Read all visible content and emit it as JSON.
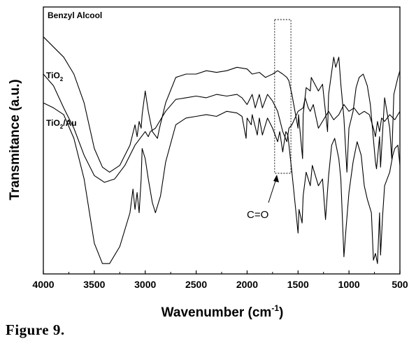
{
  "caption": "Figure 9.",
  "chart_data": {
    "type": "line",
    "xlabel_main": "Wavenumber (cm",
    "xlabel_sup": "-1",
    "xlabel_end": ")",
    "ylabel": "Transmitance (a.u.)",
    "xlim": [
      4000,
      500
    ],
    "x_reversed": true,
    "y_ticks_shown": false,
    "grid": false,
    "x_ticks": [
      "4000",
      "3500",
      "3000",
      "2500",
      "2000",
      "1500",
      "1000",
      "500"
    ],
    "x_tick_values": [
      4000,
      3500,
      3000,
      2500,
      2000,
      1500,
      1000,
      500
    ],
    "annotation": {
      "text": "C=O",
      "box_x_range": [
        1730,
        1570
      ]
    },
    "series": [
      {
        "name": "Benzyl Alcool",
        "name_parts": {
          "main": "Benzyl Alcool",
          "sub": "",
          "rest": ""
        },
        "points": [
          [
            4000,
            16
          ],
          [
            3900,
            22
          ],
          [
            3800,
            28
          ],
          [
            3700,
            38
          ],
          [
            3600,
            55
          ],
          [
            3500,
            82
          ],
          [
            3420,
            93
          ],
          [
            3350,
            96
          ],
          [
            3250,
            92
          ],
          [
            3150,
            80
          ],
          [
            3100,
            68
          ],
          [
            3080,
            75
          ],
          [
            3060,
            66
          ],
          [
            3040,
            70
          ],
          [
            3030,
            62
          ],
          [
            3000,
            48
          ],
          [
            2970,
            60
          ],
          [
            2930,
            72
          ],
          [
            2880,
            76
          ],
          [
            2860,
            70
          ],
          [
            2800,
            55
          ],
          [
            2700,
            40
          ],
          [
            2600,
            38
          ],
          [
            2500,
            38
          ],
          [
            2400,
            36
          ],
          [
            2300,
            37
          ],
          [
            2200,
            36
          ],
          [
            2100,
            34
          ],
          [
            2000,
            35
          ],
          [
            1950,
            38
          ],
          [
            1880,
            37
          ],
          [
            1820,
            40
          ],
          [
            1750,
            38
          ],
          [
            1700,
            36
          ],
          [
            1650,
            38
          ],
          [
            1610,
            40
          ],
          [
            1590,
            42
          ],
          [
            1560,
            50
          ],
          [
            1500,
            70
          ],
          [
            1495,
            62
          ],
          [
            1455,
            88
          ],
          [
            1450,
            62
          ],
          [
            1420,
            46
          ],
          [
            1380,
            48
          ],
          [
            1370,
            40
          ],
          [
            1300,
            48
          ],
          [
            1260,
            44
          ],
          [
            1210,
            72
          ],
          [
            1200,
            50
          ],
          [
            1150,
            28
          ],
          [
            1130,
            34
          ],
          [
            1100,
            28
          ],
          [
            1080,
            44
          ],
          [
            1050,
            64
          ],
          [
            1020,
            96
          ],
          [
            1000,
            70
          ],
          [
            960,
            60
          ],
          [
            930,
            46
          ],
          [
            900,
            40
          ],
          [
            860,
            38
          ],
          [
            820,
            45
          ],
          [
            790,
            56
          ],
          [
            740,
            90
          ],
          [
            730,
            94
          ],
          [
            700,
            75
          ],
          [
            690,
            93
          ],
          [
            650,
            52
          ],
          [
            600,
            70
          ],
          [
            580,
            88
          ],
          [
            560,
            50
          ],
          [
            520,
            40
          ],
          [
            500,
            36
          ]
        ]
      },
      {
        "name": "TiO2",
        "name_parts": {
          "main": "TiO",
          "sub": "2",
          "rest": ""
        },
        "points": [
          [
            4000,
            38
          ],
          [
            3900,
            45
          ],
          [
            3800,
            58
          ],
          [
            3700,
            70
          ],
          [
            3600,
            86
          ],
          [
            3500,
            98
          ],
          [
            3400,
            102
          ],
          [
            3300,
            100
          ],
          [
            3200,
            92
          ],
          [
            3100,
            80
          ],
          [
            3000,
            72
          ],
          [
            2970,
            75
          ],
          [
            2950,
            72
          ],
          [
            2900,
            70
          ],
          [
            2800,
            60
          ],
          [
            2700,
            53
          ],
          [
            2600,
            52
          ],
          [
            2500,
            51
          ],
          [
            2400,
            52
          ],
          [
            2300,
            50
          ],
          [
            2200,
            51
          ],
          [
            2100,
            50
          ],
          [
            2050,
            52
          ],
          [
            2000,
            56
          ],
          [
            1950,
            50
          ],
          [
            1920,
            58
          ],
          [
            1880,
            50
          ],
          [
            1850,
            58
          ],
          [
            1800,
            50
          ],
          [
            1750,
            54
          ],
          [
            1700,
            60
          ],
          [
            1650,
            72
          ],
          [
            1610,
            78
          ],
          [
            1590,
            70
          ],
          [
            1560,
            68
          ],
          [
            1500,
            60
          ],
          [
            1450,
            58
          ],
          [
            1430,
            52
          ],
          [
            1400,
            58
          ],
          [
            1380,
            60
          ],
          [
            1350,
            56
          ],
          [
            1300,
            70
          ],
          [
            1250,
            65
          ],
          [
            1200,
            60
          ],
          [
            1150,
            65
          ],
          [
            1100,
            62
          ],
          [
            1050,
            56
          ],
          [
            1000,
            60
          ],
          [
            950,
            58
          ],
          [
            900,
            62
          ],
          [
            850,
            60
          ],
          [
            800,
            62
          ],
          [
            760,
            70
          ],
          [
            740,
            75
          ],
          [
            720,
            66
          ],
          [
            700,
            72
          ],
          [
            680,
            64
          ],
          [
            650,
            66
          ],
          [
            600,
            62
          ],
          [
            550,
            65
          ],
          [
            500,
            60
          ]
        ]
      },
      {
        "name": "TiO2/Au",
        "name_parts": {
          "main": "TiO",
          "sub": "2",
          "rest": "/Au"
        },
        "points": [
          [
            4000,
            55
          ],
          [
            3900,
            58
          ],
          [
            3800,
            62
          ],
          [
            3700,
            76
          ],
          [
            3600,
            100
          ],
          [
            3500,
            138
          ],
          [
            3420,
            150
          ],
          [
            3350,
            150
          ],
          [
            3250,
            140
          ],
          [
            3150,
            120
          ],
          [
            3120,
            106
          ],
          [
            3100,
            118
          ],
          [
            3080,
            108
          ],
          [
            3060,
            120
          ],
          [
            3040,
            100
          ],
          [
            3030,
            82
          ],
          [
            3000,
            88
          ],
          [
            2970,
            100
          ],
          [
            2930,
            114
          ],
          [
            2900,
            120
          ],
          [
            2850,
            110
          ],
          [
            2800,
            90
          ],
          [
            2700,
            68
          ],
          [
            2600,
            64
          ],
          [
            2500,
            63
          ],
          [
            2400,
            62
          ],
          [
            2300,
            63
          ],
          [
            2200,
            60
          ],
          [
            2100,
            61
          ],
          [
            2050,
            63
          ],
          [
            2010,
            76
          ],
          [
            2000,
            64
          ],
          [
            1960,
            68
          ],
          [
            1950,
            62
          ],
          [
            1900,
            74
          ],
          [
            1880,
            64
          ],
          [
            1850,
            74
          ],
          [
            1800,
            64
          ],
          [
            1750,
            70
          ],
          [
            1700,
            78
          ],
          [
            1680,
            72
          ],
          [
            1650,
            84
          ],
          [
            1620,
            72
          ],
          [
            1600,
            74
          ],
          [
            1560,
            96
          ],
          [
            1520,
            120
          ],
          [
            1500,
            132
          ],
          [
            1490,
            118
          ],
          [
            1460,
            126
          ],
          [
            1450,
            110
          ],
          [
            1420,
            96
          ],
          [
            1380,
            104
          ],
          [
            1360,
            92
          ],
          [
            1300,
            104
          ],
          [
            1260,
            100
          ],
          [
            1230,
            124
          ],
          [
            1200,
            98
          ],
          [
            1170,
            80
          ],
          [
            1140,
            76
          ],
          [
            1100,
            88
          ],
          [
            1080,
            100
          ],
          [
            1050,
            146
          ],
          [
            1030,
            130
          ],
          [
            1000,
            108
          ],
          [
            960,
            90
          ],
          [
            920,
            78
          ],
          [
            880,
            86
          ],
          [
            850,
            104
          ],
          [
            820,
            112
          ],
          [
            780,
            120
          ],
          [
            760,
            148
          ],
          [
            740,
            144
          ],
          [
            720,
            150
          ],
          [
            700,
            120
          ],
          [
            690,
            145
          ],
          [
            670,
            122
          ],
          [
            650,
            104
          ],
          [
            600,
            96
          ],
          [
            570,
            86
          ],
          [
            550,
            82
          ],
          [
            520,
            80
          ],
          [
            500,
            92
          ]
        ]
      }
    ]
  }
}
